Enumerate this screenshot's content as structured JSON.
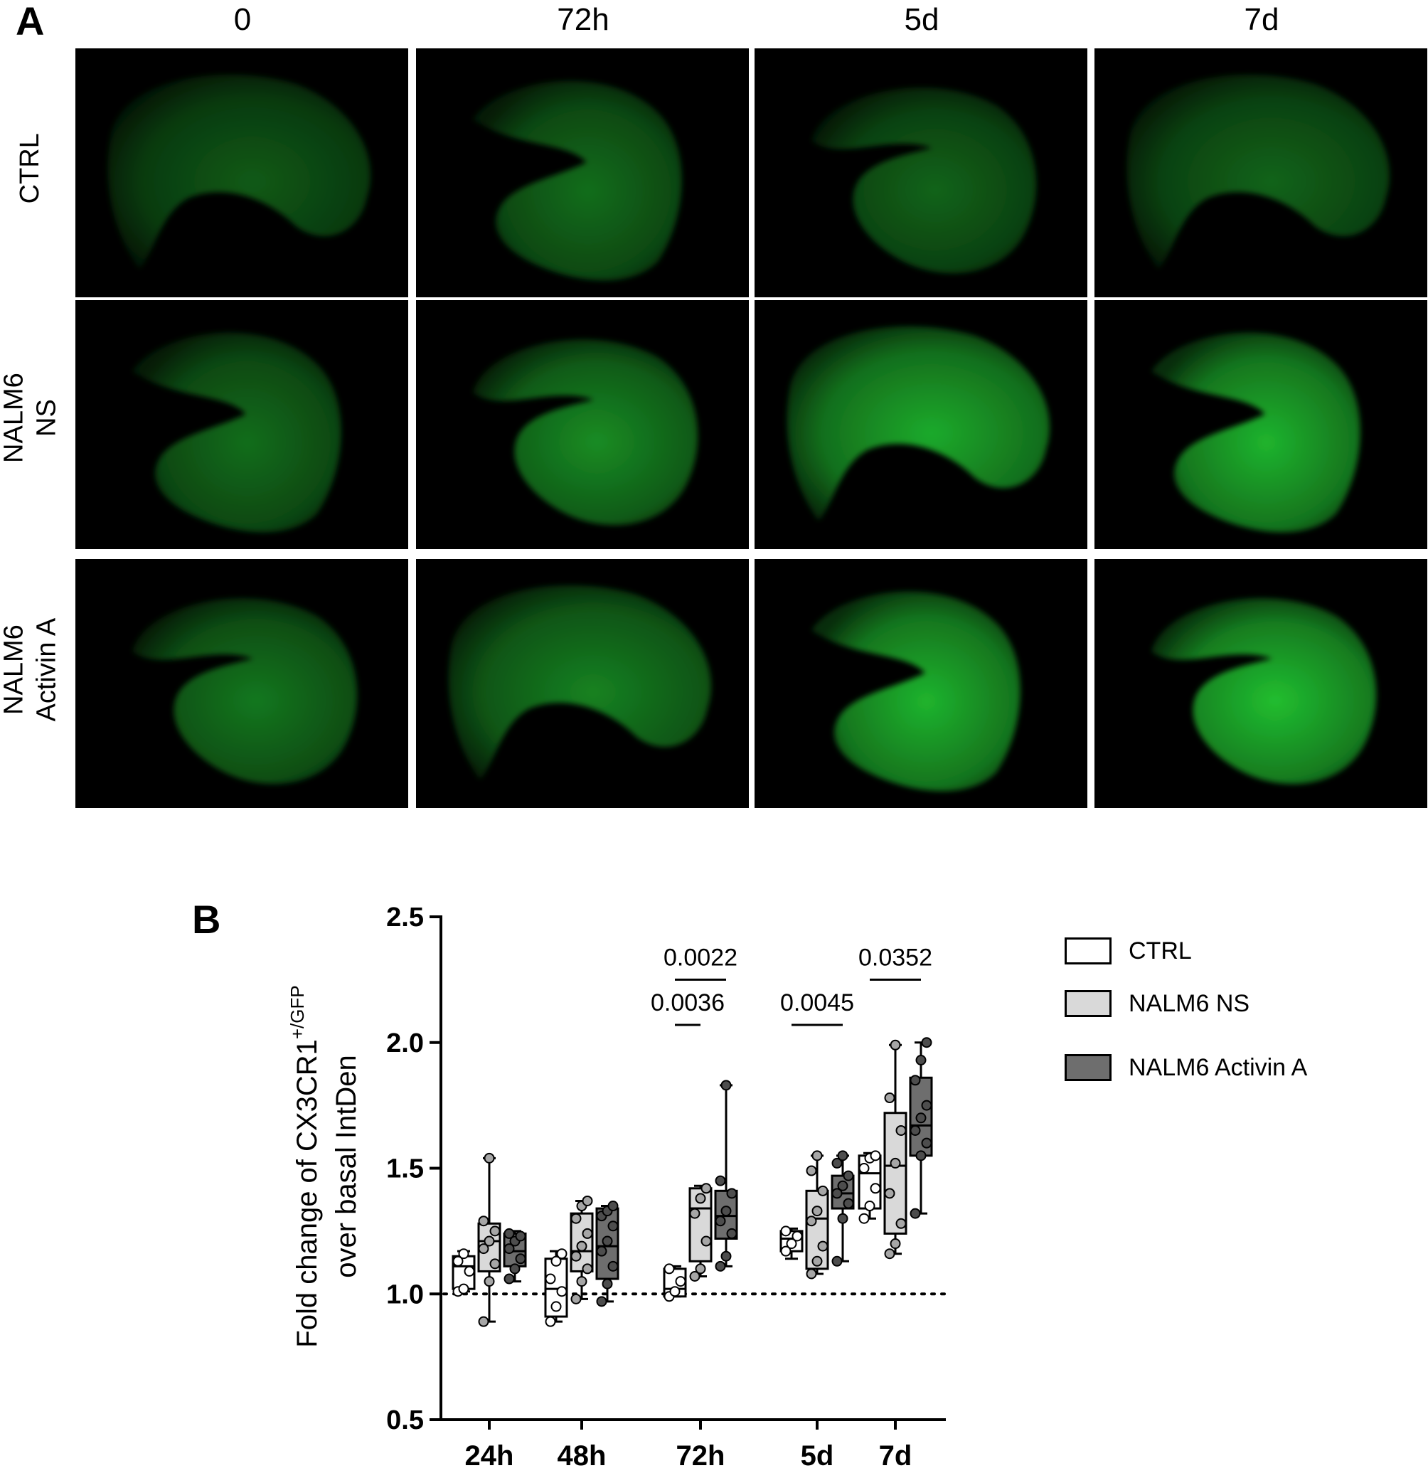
{
  "panel_a": {
    "letter": "A",
    "columns": [
      "0",
      "72h",
      "5d",
      "7d"
    ],
    "rows": [
      {
        "label": [
          "CTRL"
        ]
      },
      {
        "label": [
          "NALM6",
          "NS"
        ]
      },
      {
        "label": [
          "NALM6",
          "Activin A"
        ]
      }
    ],
    "image_intensity": [
      [
        0.45,
        0.55,
        0.5,
        0.5
      ],
      [
        0.55,
        0.7,
        0.85,
        0.9
      ],
      [
        0.6,
        0.65,
        0.9,
        0.95
      ]
    ],
    "image_color": "#22c832"
  },
  "panel_b": {
    "letter": "B",
    "chart_data": {
      "type": "box",
      "ylabel_lines": [
        "Fold change of CX3CR1",
        "+/GFP",
        "over basal IntDen"
      ],
      "ylim": [
        0.5,
        2.5
      ],
      "yticks": [
        "0.5",
        "1.0",
        "1.5",
        "2.0",
        "2.5"
      ],
      "categories": [
        "24h",
        "48h",
        "72h",
        "5d",
        "7d"
      ],
      "reference_line": 1.0,
      "series": [
        {
          "name": "CTRL",
          "color": "#ffffff",
          "boxes": [
            {
              "min": 1.01,
              "q1": 1.02,
              "median": 1.11,
              "q3": 1.15,
              "max": 1.17,
              "points": [
                1.01,
                1.02,
                1.09,
                1.13,
                1.16
              ]
            },
            {
              "min": 0.89,
              "q1": 0.91,
              "median": 1.02,
              "q3": 1.14,
              "max": 1.17,
              "points": [
                0.89,
                0.95,
                1.01,
                1.06,
                1.13,
                1.16
              ]
            },
            {
              "min": 0.99,
              "q1": 0.99,
              "median": 1.02,
              "q3": 1.1,
              "max": 1.11,
              "points": [
                0.99,
                1.01,
                1.05,
                1.1
              ]
            },
            {
              "min": 1.14,
              "q1": 1.17,
              "median": 1.22,
              "q3": 1.25,
              "max": 1.26,
              "points": [
                1.17,
                1.2,
                1.23,
                1.25
              ]
            },
            {
              "min": 1.3,
              "q1": 1.34,
              "median": 1.48,
              "q3": 1.55,
              "max": 1.56,
              "points": [
                1.3,
                1.35,
                1.42,
                1.5,
                1.54,
                1.55
              ]
            }
          ]
        },
        {
          "name": "NALM6 NS",
          "color": "#d9d9d9",
          "boxes": [
            {
              "min": 0.89,
              "q1": 1.09,
              "median": 1.21,
              "q3": 1.28,
              "max": 1.54,
              "points": [
                0.89,
                1.05,
                1.12,
                1.18,
                1.21,
                1.25,
                1.29,
                1.54
              ]
            },
            {
              "min": 0.98,
              "q1": 1.09,
              "median": 1.17,
              "q3": 1.32,
              "max": 1.37,
              "points": [
                0.98,
                1.05,
                1.1,
                1.15,
                1.19,
                1.24,
                1.3,
                1.35,
                1.37
              ]
            },
            {
              "min": 1.07,
              "q1": 1.13,
              "median": 1.34,
              "q3": 1.42,
              "max": 1.43,
              "points": [
                1.07,
                1.1,
                1.21,
                1.32,
                1.38,
                1.42
              ]
            },
            {
              "min": 1.08,
              "q1": 1.1,
              "median": 1.3,
              "q3": 1.41,
              "max": 1.55,
              "points": [
                1.08,
                1.13,
                1.19,
                1.29,
                1.33,
                1.41,
                1.49,
                1.55
              ]
            },
            {
              "min": 1.16,
              "q1": 1.24,
              "median": 1.51,
              "q3": 1.72,
              "max": 1.99,
              "points": [
                1.16,
                1.2,
                1.28,
                1.4,
                1.52,
                1.65,
                1.78,
                1.99
              ]
            }
          ]
        },
        {
          "name": "NALM6 Activin A",
          "color": "#6e6e6e",
          "boxes": [
            {
              "min": 1.05,
              "q1": 1.11,
              "median": 1.17,
              "q3": 1.24,
              "max": 1.25,
              "points": [
                1.06,
                1.1,
                1.14,
                1.18,
                1.21,
                1.23,
                1.24
              ]
            },
            {
              "min": 0.97,
              "q1": 1.06,
              "median": 1.19,
              "q3": 1.34,
              "max": 1.35,
              "points": [
                0.97,
                1.04,
                1.11,
                1.17,
                1.21,
                1.27,
                1.31,
                1.33,
                1.35
              ]
            },
            {
              "min": 1.11,
              "q1": 1.22,
              "median": 1.31,
              "q3": 1.41,
              "max": 1.83,
              "points": [
                1.11,
                1.15,
                1.24,
                1.29,
                1.33,
                1.4,
                1.45,
                1.83
              ]
            },
            {
              "min": 1.13,
              "q1": 1.34,
              "median": 1.4,
              "q3": 1.47,
              "max": 1.55,
              "points": [
                1.13,
                1.3,
                1.36,
                1.4,
                1.43,
                1.47,
                1.52,
                1.55
              ]
            },
            {
              "min": 1.32,
              "q1": 1.55,
              "median": 1.67,
              "q3": 1.86,
              "max": 2.0,
              "points": [
                1.32,
                1.55,
                1.6,
                1.65,
                1.7,
                1.75,
                1.85,
                1.93,
                2.0
              ]
            }
          ]
        }
      ],
      "annotations": [
        {
          "text": "0.0022",
          "category": 2,
          "from_series": 0,
          "to_series": 2,
          "y": 2.25
        },
        {
          "text": "0.0036",
          "category": 2,
          "from_series": 0,
          "to_series": 1,
          "y": 2.07
        },
        {
          "text": "0.0045",
          "category": 3,
          "from_series": 0,
          "to_series": 2,
          "y": 2.07
        },
        {
          "text": "0.0352",
          "category": 4,
          "from_series": 0,
          "to_series": 2,
          "y": 2.25
        }
      ]
    }
  }
}
